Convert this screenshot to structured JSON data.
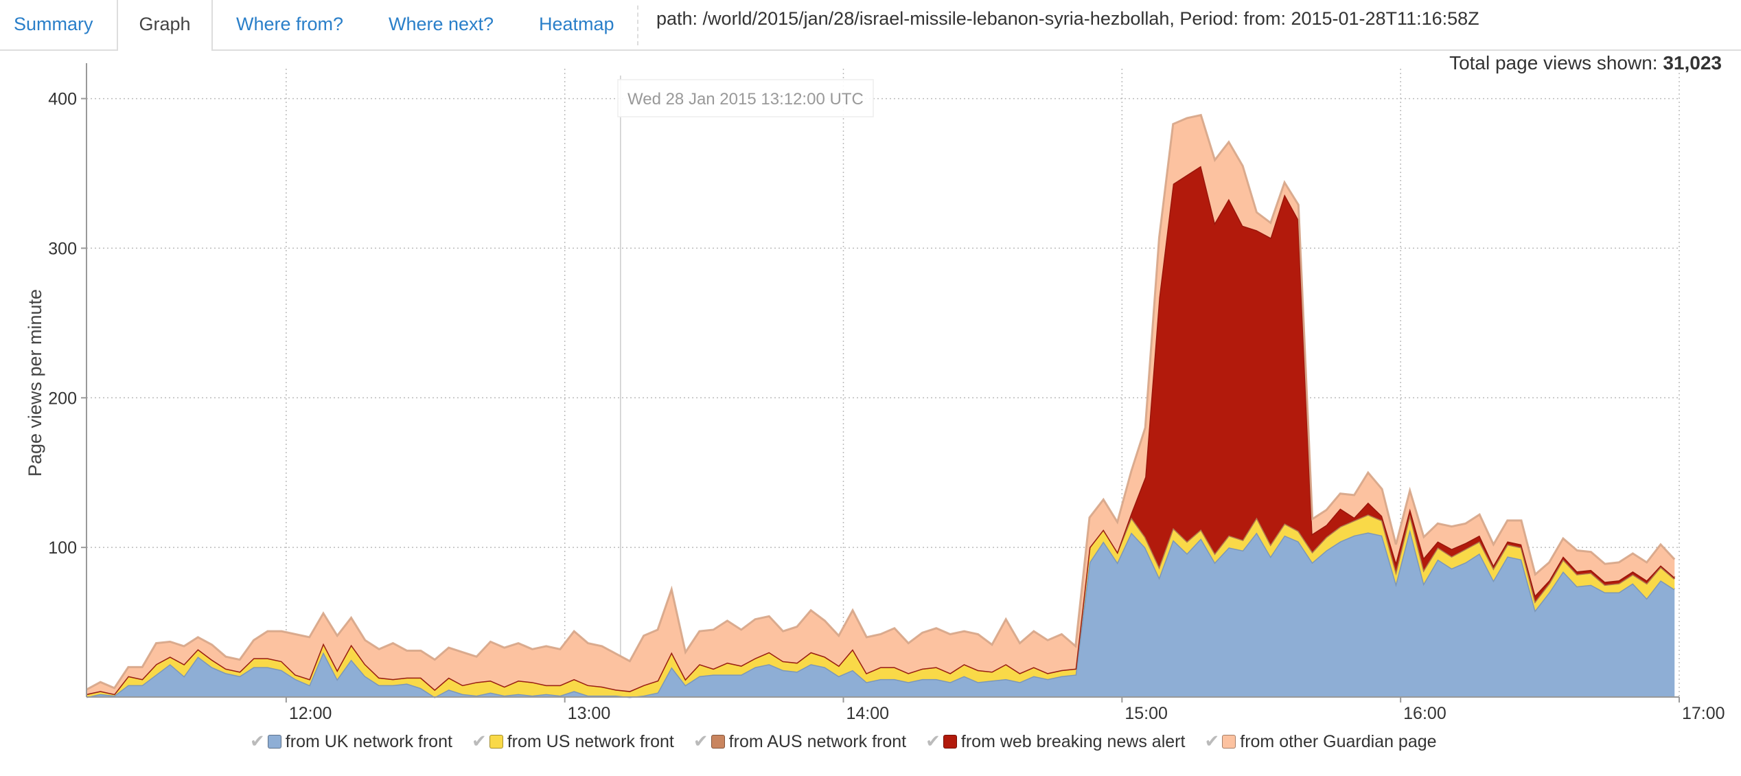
{
  "tabs": [
    {
      "label": "Summary",
      "active": false
    },
    {
      "label": "Graph",
      "active": true
    },
    {
      "label": "Where from?",
      "active": false
    },
    {
      "label": "Where next?",
      "active": false
    },
    {
      "label": "Heatmap",
      "active": false
    }
  ],
  "header": {
    "path_text": "path: /world/2015/jan/28/israel-missile-lebanon-syria-hezbollah, Period: from: 2015-01-28T11:16:58Z",
    "total_label": "Total page views shown:",
    "total_value": "31,023"
  },
  "tooltip_text": "Wed 28 Jan 2015 13:12:00 UTC",
  "chart_data": {
    "type": "area",
    "stacked": true,
    "ylabel": "Page views per minute",
    "xlabel": "",
    "x_start": "11:17",
    "x_end": "17:00",
    "x_step_minutes": 3,
    "ylim": [
      0,
      420
    ],
    "yticks": [
      100,
      200,
      300,
      400
    ],
    "xticks": [
      "12:00",
      "13:00",
      "14:00",
      "15:00",
      "16:00",
      "17:00"
    ],
    "grid": true,
    "legend_position": "bottom",
    "series": [
      {
        "name": "from UK network front",
        "color": "#8eaed5",
        "values": [
          0,
          2,
          1,
          8,
          8,
          15,
          22,
          14,
          27,
          20,
          16,
          14,
          20,
          20,
          18,
          12,
          8,
          30,
          12,
          25,
          14,
          8,
          8,
          9,
          6,
          0,
          5,
          2,
          1,
          3,
          1,
          2,
          1,
          2,
          1,
          4,
          1,
          1,
          1,
          0,
          1,
          3,
          20,
          8,
          14,
          15,
          15,
          15,
          20,
          22,
          18,
          17,
          22,
          20,
          14,
          18,
          10,
          12,
          12,
          10,
          12,
          12,
          10,
          14,
          10,
          11,
          12,
          10,
          14,
          12,
          14,
          15,
          90,
          104,
          90,
          110,
          100,
          80,
          105,
          96,
          106,
          90,
          100,
          98,
          110,
          94,
          108,
          104,
          90,
          98,
          104,
          108,
          110,
          108,
          76,
          112,
          76,
          92,
          86,
          90,
          96,
          78,
          94,
          92,
          58,
          70,
          84,
          74,
          75,
          70,
          70,
          76,
          66,
          78,
          72
        ]
      },
      {
        "name": "from US network front",
        "color": "#f9d948",
        "values": [
          2,
          2,
          1,
          6,
          4,
          7,
          5,
          8,
          5,
          5,
          3,
          3,
          6,
          6,
          6,
          3,
          4,
          6,
          6,
          10,
          8,
          5,
          4,
          4,
          7,
          5,
          8,
          6,
          9,
          8,
          6,
          9,
          9,
          6,
          7,
          8,
          7,
          6,
          4,
          4,
          7,
          8,
          10,
          4,
          8,
          4,
          8,
          6,
          6,
          8,
          6,
          6,
          8,
          7,
          7,
          14,
          6,
          8,
          8,
          6,
          7,
          8,
          6,
          8,
          8,
          6,
          10,
          6,
          6,
          4,
          4,
          4,
          10,
          8,
          7,
          10,
          7,
          7,
          8,
          8,
          6,
          6,
          8,
          7,
          10,
          8,
          8,
          7,
          7,
          9,
          10,
          10,
          12,
          10,
          8,
          10,
          9,
          8,
          8,
          9,
          8,
          8,
          8,
          8,
          6,
          6,
          8,
          8,
          8,
          5,
          6,
          6,
          10,
          9,
          7
        ]
      },
      {
        "name": "from AUS network front",
        "color": "#c9855f",
        "values": [
          0,
          0,
          0,
          0,
          0,
          0,
          0,
          0,
          0,
          0,
          0,
          0,
          0,
          0,
          0,
          0,
          0,
          0,
          0,
          0,
          0,
          0,
          0,
          0,
          0,
          0,
          0,
          0,
          0,
          0,
          0,
          0,
          0,
          0,
          0,
          0,
          0,
          0,
          0,
          0,
          0,
          0,
          0,
          0,
          0,
          0,
          0,
          0,
          0,
          0,
          0,
          0,
          0,
          0,
          0,
          0,
          0,
          0,
          0,
          0,
          0,
          0,
          0,
          0,
          0,
          0,
          0,
          0,
          0,
          0,
          0,
          0,
          0,
          0,
          0,
          0,
          0,
          0,
          0,
          0,
          0,
          0,
          0,
          0,
          0,
          0,
          0,
          0,
          0,
          0,
          0,
          0,
          0,
          0,
          0,
          0,
          0,
          0,
          0,
          0,
          0,
          0,
          0,
          0,
          0,
          0,
          0,
          0,
          0,
          0,
          0,
          0,
          0,
          0,
          0
        ]
      },
      {
        "name": "from web breaking news alert",
        "color": "#b21a0c",
        "values": [
          0,
          0,
          0,
          0,
          0,
          0,
          0,
          0,
          0,
          0,
          0,
          0,
          0,
          0,
          0,
          0,
          0,
          0,
          0,
          0,
          0,
          0,
          0,
          0,
          0,
          0,
          0,
          0,
          0,
          0,
          0,
          0,
          0,
          0,
          0,
          0,
          0,
          0,
          0,
          0,
          0,
          0,
          0,
          0,
          0,
          0,
          0,
          0,
          0,
          0,
          0,
          0,
          0,
          0,
          0,
          0,
          0,
          0,
          0,
          0,
          0,
          0,
          0,
          0,
          0,
          0,
          0,
          0,
          0,
          0,
          0,
          0,
          0,
          0,
          0,
          3,
          40,
          180,
          230,
          245,
          243,
          221,
          225,
          210,
          192,
          205,
          220,
          208,
          12,
          8,
          12,
          2,
          8,
          3,
          6,
          4,
          8,
          4,
          5,
          4,
          4,
          2,
          2,
          2,
          4,
          2,
          2,
          2,
          2,
          2,
          2,
          2,
          2,
          1,
          1,
          1,
          1,
          1,
          1,
          0,
          0
        ]
      },
      {
        "name": "from other Guardian page",
        "color": "#fcc2a0",
        "values": [
          3,
          6,
          4,
          6,
          8,
          14,
          10,
          12,
          8,
          10,
          8,
          8,
          12,
          18,
          20,
          27,
          28,
          20,
          23,
          18,
          16,
          19,
          24,
          18,
          18,
          20,
          20,
          22,
          17,
          26,
          26,
          25,
          22,
          26,
          24,
          32,
          28,
          27,
          24,
          20,
          33,
          34,
          42,
          18,
          22,
          26,
          28,
          24,
          26,
          24,
          20,
          24,
          28,
          24,
          20,
          26,
          24,
          22,
          26,
          20,
          24,
          26,
          26,
          22,
          24,
          18,
          30,
          20,
          24,
          22,
          24,
          15,
          20,
          20,
          20,
          28,
          33,
          40,
          40,
          38,
          34,
          42,
          38,
          40,
          12,
          10,
          8,
          10,
          10,
          10,
          10,
          15,
          20,
          18,
          12,
          12,
          14,
          12,
          15,
          13,
          14,
          14,
          14,
          16,
          14,
          12,
          12,
          14,
          12,
          12,
          12,
          12,
          12,
          14,
          12
        ]
      }
    ]
  }
}
